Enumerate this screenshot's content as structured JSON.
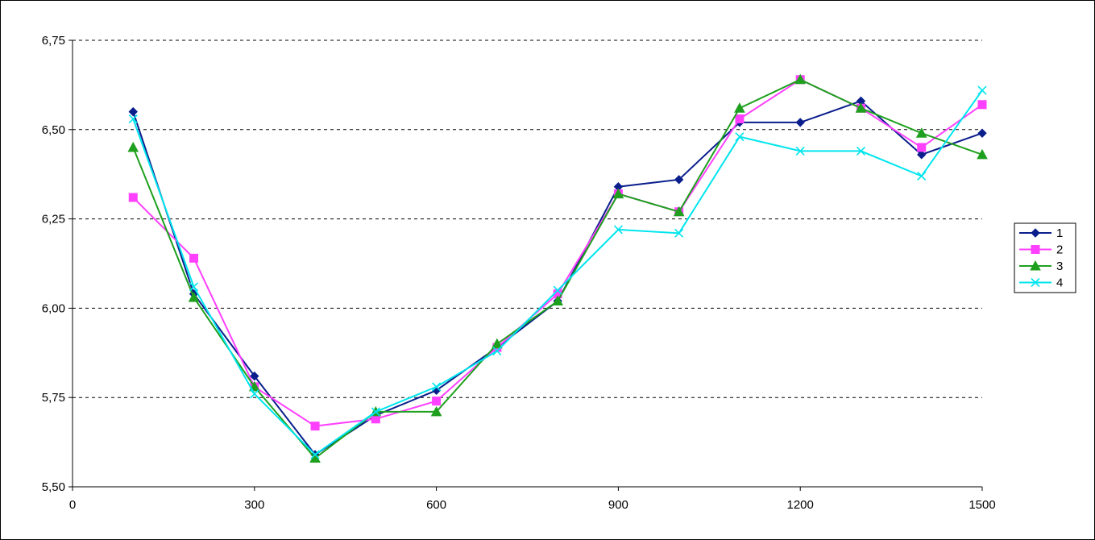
{
  "chart_data": {
    "type": "line",
    "title": "",
    "xlabel": "",
    "ylabel": "",
    "xlim": [
      0,
      1500
    ],
    "ylim": [
      5.5,
      6.75
    ],
    "x_ticks": [
      0,
      300,
      600,
      900,
      1200,
      1500
    ],
    "x_tick_labels": [
      "0",
      "300",
      "600",
      "900",
      "1200",
      "1500"
    ],
    "y_ticks": [
      5.5,
      5.75,
      6.0,
      6.25,
      6.5,
      6.75
    ],
    "y_tick_labels": [
      "5,50",
      "5,75",
      "6,00",
      "6,25",
      "6,50",
      "6,75"
    ],
    "grid": "horizontal dashed",
    "legend_position": "right",
    "x": [
      100,
      200,
      300,
      400,
      500,
      600,
      700,
      800,
      900,
      1000,
      1100,
      1200,
      1300,
      1400,
      1500
    ],
    "series": [
      {
        "name": "1",
        "color": "#0A1E8C",
        "marker": "diamond",
        "values": [
          6.55,
          6.04,
          5.81,
          5.59,
          5.7,
          5.77,
          5.89,
          6.02,
          6.34,
          6.36,
          6.52,
          6.52,
          6.58,
          6.43,
          6.49
        ]
      },
      {
        "name": "2",
        "color": "#FF40FF",
        "marker": "square",
        "values": [
          6.31,
          6.14,
          5.78,
          5.67,
          5.69,
          5.74,
          5.89,
          6.04,
          6.32,
          6.27,
          6.53,
          6.64,
          6.56,
          6.45,
          6.57
        ]
      },
      {
        "name": "3",
        "color": "#1EA01E",
        "marker": "triangle",
        "values": [
          6.45,
          6.03,
          5.78,
          5.58,
          5.71,
          5.71,
          5.9,
          6.02,
          6.32,
          6.27,
          6.56,
          6.64,
          6.56,
          6.49,
          6.43
        ]
      },
      {
        "name": "4",
        "color": "#00E5EE",
        "marker": "x",
        "values": [
          6.53,
          6.06,
          5.76,
          5.59,
          5.71,
          5.78,
          5.88,
          6.05,
          6.22,
          6.21,
          6.48,
          6.44,
          6.44,
          6.37,
          6.61
        ]
      }
    ]
  }
}
